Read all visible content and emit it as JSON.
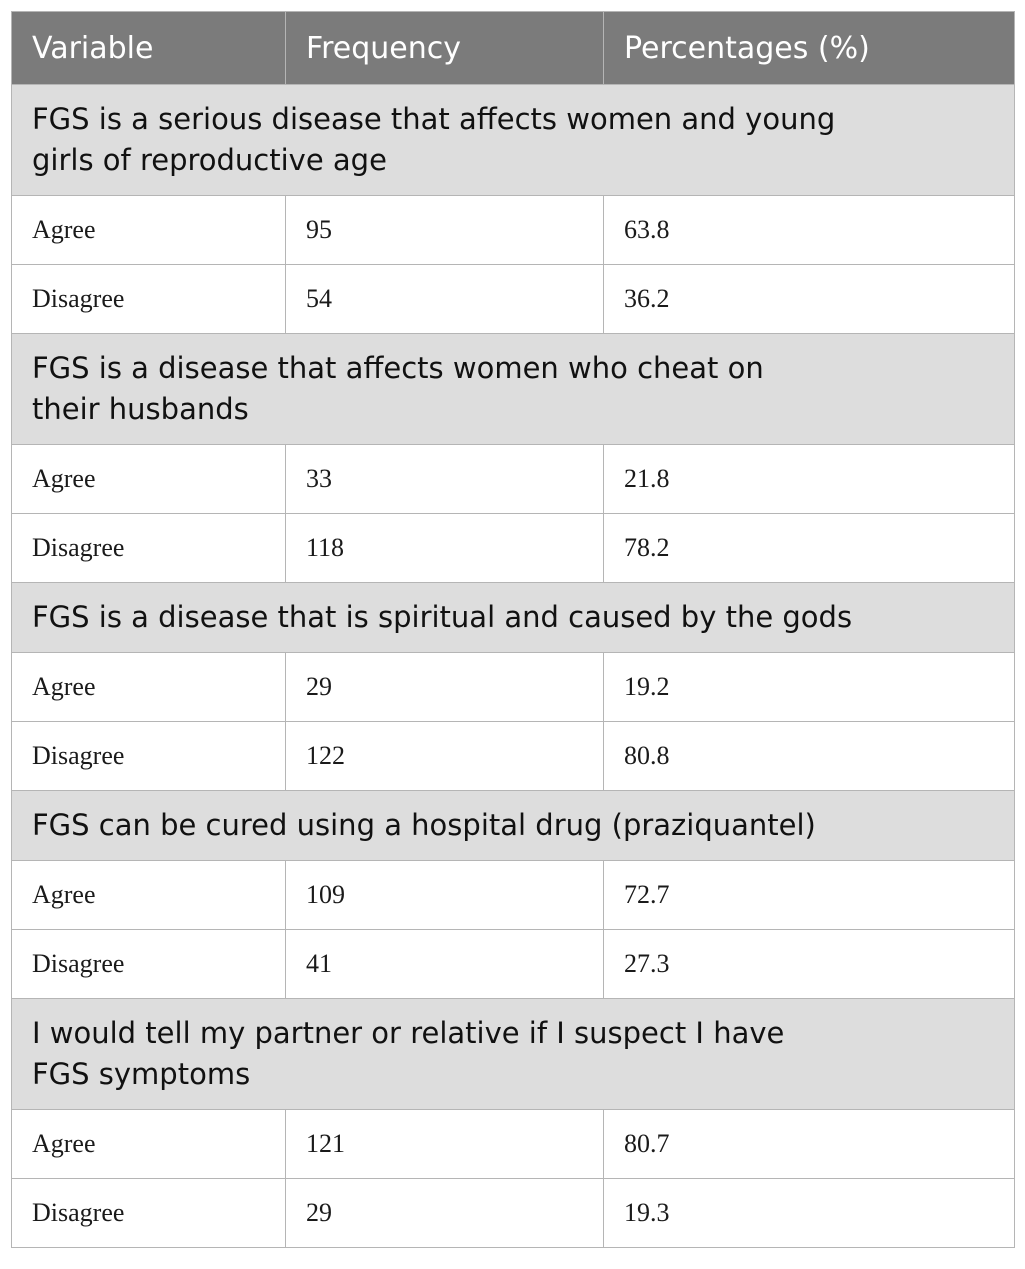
{
  "table": {
    "headers": [
      "Variable",
      "Frequency",
      "Percentages (%)"
    ],
    "sections": [
      {
        "title": "FGS is a serious disease that affects women and young girls of reproductive age",
        "rows": [
          {
            "variable": "Agree",
            "frequency": "95",
            "percentage": "63.8"
          },
          {
            "variable": "Disagree",
            "frequency": "54",
            "percentage": "36.2"
          }
        ]
      },
      {
        "title": "FGS is a disease that affects women who cheat on their husbands",
        "rows": [
          {
            "variable": "Agree",
            "frequency": "33",
            "percentage": "21.8"
          },
          {
            "variable": "Disagree",
            "frequency": "118",
            "percentage": "78.2"
          }
        ]
      },
      {
        "title": "FGS is a disease that is spiritual and caused by the gods",
        "rows": [
          {
            "variable": "Agree",
            "frequency": "29",
            "percentage": "19.2"
          },
          {
            "variable": "Disagree",
            "frequency": "122",
            "percentage": "80.8"
          }
        ]
      },
      {
        "title": "FGS can be cured using a hospital drug (praziquantel)",
        "rows": [
          {
            "variable": "Agree",
            "frequency": "109",
            "percentage": "72.7"
          },
          {
            "variable": "Disagree",
            "frequency": "41",
            "percentage": "27.3"
          }
        ]
      },
      {
        "title": "I would tell my partner or relative if I suspect I have FGS symptoms",
        "rows": [
          {
            "variable": "Agree",
            "frequency": "121",
            "percentage": "80.7"
          },
          {
            "variable": "Disagree",
            "frequency": "29",
            "percentage": "19.3"
          }
        ]
      }
    ]
  },
  "colors": {
    "header_bg": "#7b7b7b",
    "header_text": "#ffffff",
    "section_bg": "#dddddd",
    "border": "#b5b5b5"
  }
}
